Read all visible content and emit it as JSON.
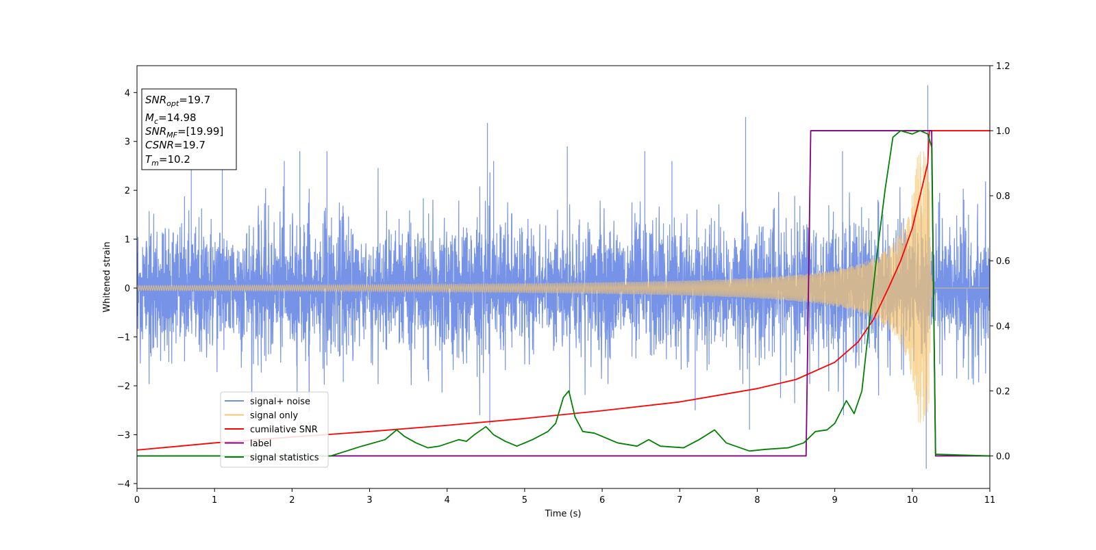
{
  "chart_data": {
    "type": "line",
    "xlabel": "Time (s)",
    "ylabel": "Whitened strain",
    "xlim": [
      0,
      11
    ],
    "ylim_left": [
      -4.1,
      4.55
    ],
    "ylim_right": [
      -0.1,
      1.2
    ],
    "x_ticks": [
      "0",
      "1",
      "2",
      "3",
      "4",
      "5",
      "6",
      "7",
      "8",
      "9",
      "10",
      "11"
    ],
    "y_ticks_left": [
      "−4",
      "−3",
      "−2",
      "−1",
      "0",
      "1",
      "2",
      "3",
      "4"
    ],
    "y_ticks_right": [
      "0.0",
      "0.2",
      "0.4",
      "0.6",
      "0.8",
      "1.0",
      "1.2"
    ],
    "annotation": {
      "snr_opt": {
        "base": "SNR",
        "sub": "opt",
        "rest": "=19.7"
      },
      "mc": {
        "base": "M",
        "sub": "c",
        "rest": "=14.98"
      },
      "snr_mf": {
        "base": "SNR",
        "sub": "MF",
        "rest": "=[19.99]"
      },
      "csnr": {
        "base": "CSNR",
        "rest": "=19.7"
      },
      "tm": {
        "base": "T",
        "sub": "m",
        "rest": "=10.2"
      }
    },
    "legend": {
      "placement": "lower-left",
      "entries": [
        {
          "label": "signal+ noise",
          "color": "#6f8de6"
        },
        {
          "label": "signal only",
          "color": "#f6c56e"
        },
        {
          "label": "cumilative SNR",
          "color": "#ff0000"
        },
        {
          "label": "label",
          "color": "#800080"
        },
        {
          "label": "signal statistics",
          "color": "#008000"
        }
      ]
    },
    "series": [
      {
        "name": "signal+ noise",
        "axis": "left",
        "color": "#6f8de6",
        "description_type": "noise",
        "noise_std": 0.75,
        "spikes": [
          [
            0.7,
            2.6
          ],
          [
            1.1,
            2.7
          ],
          [
            1.9,
            2.6
          ],
          [
            2.1,
            2.8
          ],
          [
            2.45,
            2.8
          ],
          [
            4.52,
            3.38
          ],
          [
            4.6,
            2.6
          ],
          [
            5.55,
            2.9
          ],
          [
            6.55,
            2.8
          ],
          [
            6.9,
            2.6
          ],
          [
            7.85,
            3.5
          ],
          [
            9.1,
            2.8
          ],
          [
            10.2,
            4.15
          ],
          [
            4.55,
            -2.8
          ],
          [
            7.2,
            -2.5
          ],
          [
            7.9,
            -2.9
          ],
          [
            10.18,
            -3.7
          ]
        ]
      },
      {
        "name": "signal only",
        "axis": "left",
        "color": "#f6c56e",
        "envelope": {
          "t_merge": 10.22,
          "amp_at_0": 0.05,
          "max_amp": 2.8
        }
      },
      {
        "name": "cumilative SNR",
        "axis": "right",
        "color": "#ff0000",
        "x": [
          0,
          1,
          2,
          3,
          4,
          5,
          6,
          7,
          8,
          8.5,
          9,
          9.3,
          9.5,
          9.7,
          9.85,
          10.0,
          10.1,
          10.2,
          10.22,
          11
        ],
        "y": [
          0.018,
          0.04,
          0.058,
          0.075,
          0.094,
          0.115,
          0.139,
          0.166,
          0.207,
          0.235,
          0.288,
          0.35,
          0.42,
          0.52,
          0.6,
          0.7,
          0.8,
          0.9,
          1.0,
          1.0
        ]
      },
      {
        "name": "label",
        "axis": "right",
        "color": "#800080",
        "x": [
          0,
          8.63,
          8.69,
          10.25,
          10.3,
          11
        ],
        "y": [
          0,
          0,
          1,
          1,
          0,
          0
        ]
      },
      {
        "name": "signal statistics",
        "axis": "right",
        "color": "#008000",
        "x": [
          0,
          2.5,
          2.9,
          3.2,
          3.35,
          3.45,
          3.6,
          3.75,
          3.9,
          4.15,
          4.25,
          4.35,
          4.5,
          4.6,
          4.75,
          4.9,
          5.1,
          5.3,
          5.4,
          5.5,
          5.57,
          5.65,
          5.75,
          5.9,
          6.2,
          6.45,
          6.6,
          6.75,
          7.05,
          7.25,
          7.45,
          7.6,
          7.9,
          8.1,
          8.4,
          8.6,
          8.75,
          8.9,
          9.0,
          9.15,
          9.25,
          9.35,
          9.45,
          9.55,
          9.65,
          9.75,
          9.85,
          10.0,
          10.1,
          10.2,
          10.25,
          10.3,
          11
        ],
        "y": [
          0.0,
          0.0,
          0.03,
          0.05,
          0.08,
          0.06,
          0.04,
          0.025,
          0.03,
          0.05,
          0.045,
          0.065,
          0.09,
          0.065,
          0.045,
          0.03,
          0.05,
          0.075,
          0.1,
          0.18,
          0.2,
          0.12,
          0.075,
          0.07,
          0.04,
          0.03,
          0.05,
          0.03,
          0.025,
          0.05,
          0.08,
          0.04,
          0.015,
          0.02,
          0.025,
          0.04,
          0.075,
          0.08,
          0.1,
          0.17,
          0.13,
          0.2,
          0.42,
          0.63,
          0.82,
          0.98,
          1.0,
          0.99,
          1.0,
          0.99,
          0.95,
          0.005,
          0.0
        ]
      }
    ]
  }
}
